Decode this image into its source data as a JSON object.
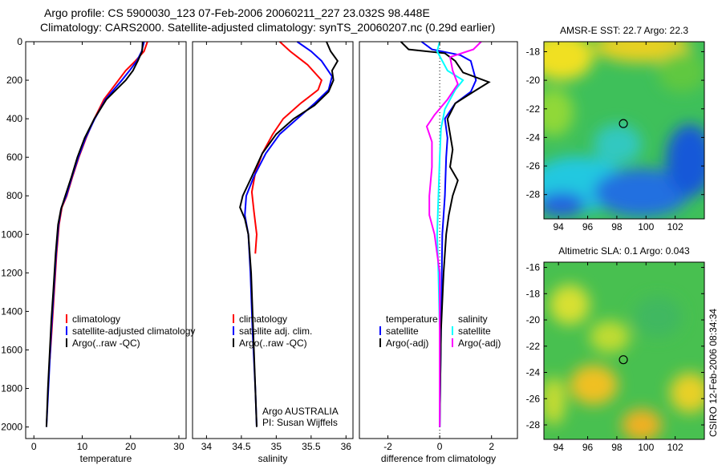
{
  "title_line1": "Argo profile: CS 5900030_123 07-Feb-2006 20060211_227 23.032S 98.448E",
  "title_line2": "Climatology: CARS2000. Satellite-adjusted climatology: synTS_20060207.nc (0.29d earlier)",
  "side_label": "CSIRO 12-Feb-2006 08:34:34",
  "chart_data": [
    {
      "type": "line",
      "id": "temperature",
      "xlabel": "temperature",
      "xlim": [
        -1.7,
        31.5
      ],
      "ylim": [
        0,
        2060
      ],
      "yreversed": true,
      "xticks": [
        0,
        10,
        20,
        30
      ],
      "yticks": [
        0,
        200,
        400,
        600,
        800,
        1000,
        1200,
        1400,
        1600,
        1800,
        2000
      ],
      "legend": {
        "placement": "center-right",
        "entries": [
          {
            "label": "climatology",
            "color": "#ff0000"
          },
          {
            "label": "satellite-adjusted climatology",
            "color": "#0000ff"
          },
          {
            "label": "Argo(..raw -QC)",
            "color": "#000000"
          }
        ]
      },
      "series": [
        {
          "name": "climatology",
          "color": "#ff0000",
          "points": [
            [
              23.5,
              0
            ],
            [
              22.8,
              50
            ],
            [
              21,
              100
            ],
            [
              19,
              150
            ],
            [
              17.5,
              200
            ],
            [
              16,
              250
            ],
            [
              14.5,
              300
            ],
            [
              12.5,
              400
            ],
            [
              10.8,
              500
            ],
            [
              9.3,
              600
            ],
            [
              8,
              700
            ],
            [
              6.8,
              800
            ],
            [
              5.8,
              860
            ],
            [
              5.2,
              950
            ],
            [
              4.7,
              1100
            ],
            [
              4.2,
              1300
            ],
            [
              3.7,
              1500
            ],
            [
              3.3,
              1650
            ]
          ]
        },
        {
          "name": "satellite-adjusted climatology",
          "color": "#0000ff",
          "points": [
            [
              22.8,
              0
            ],
            [
              22.3,
              50
            ],
            [
              21.3,
              100
            ],
            [
              19.8,
              150
            ],
            [
              18.2,
              200
            ],
            [
              16.5,
              250
            ],
            [
              14.8,
              300
            ],
            [
              12.6,
              400
            ],
            [
              10.7,
              500
            ],
            [
              9.2,
              600
            ],
            [
              7.9,
              700
            ],
            [
              6.7,
              800
            ],
            [
              5.7,
              860
            ],
            [
              5.1,
              950
            ],
            [
              4.6,
              1100
            ],
            [
              4.1,
              1300
            ],
            [
              3.6,
              1500
            ],
            [
              3.2,
              1700
            ],
            [
              2.9,
              1850
            ],
            [
              2.6,
              2000
            ]
          ]
        },
        {
          "name": "Argo(..raw -QC)",
          "color": "#000000",
          "points": [
            [
              22.5,
              0
            ],
            [
              22.4,
              50
            ],
            [
              21.5,
              100
            ],
            [
              20.5,
              150
            ],
            [
              19,
              200
            ],
            [
              17,
              250
            ],
            [
              15,
              300
            ],
            [
              12.5,
              400
            ],
            [
              10.5,
              500
            ],
            [
              9,
              600
            ],
            [
              7.8,
              700
            ],
            [
              6.5,
              800
            ],
            [
              5.6,
              870
            ],
            [
              5,
              950
            ],
            [
              4.5,
              1100
            ],
            [
              4,
              1300
            ],
            [
              3.6,
              1450
            ],
            [
              3.2,
              1650
            ],
            [
              2.9,
              1800
            ],
            [
              2.6,
              2000
            ]
          ]
        }
      ]
    },
    {
      "type": "line",
      "id": "salinity",
      "xlabel": "salinity",
      "xlim": [
        33.8,
        36.1
      ],
      "ylim": [
        0,
        2060
      ],
      "yreversed": true,
      "xticks": [
        34,
        34.5,
        35,
        35.5,
        36
      ],
      "yticks": [],
      "legend": {
        "placement": "center-right",
        "entries": [
          {
            "label": "climatology",
            "color": "#ff0000"
          },
          {
            "label": "satellite adj. clim.",
            "color": "#0000ff"
          },
          {
            "label": "Argo(..raw -QC)",
            "color": "#000000"
          }
        ]
      },
      "annotations": [
        "Argo AUSTRALIA",
        "PI: Susan Wijffels"
      ],
      "series": [
        {
          "name": "climatology",
          "color": "#ff0000",
          "points": [
            [
              35.05,
              0
            ],
            [
              35.2,
              50
            ],
            [
              35.45,
              120
            ],
            [
              35.65,
              200
            ],
            [
              35.6,
              250
            ],
            [
              35.35,
              320
            ],
            [
              35.1,
              400
            ],
            [
              34.95,
              480
            ],
            [
              34.8,
              580
            ],
            [
              34.7,
              680
            ],
            [
              34.65,
              780
            ],
            [
              34.68,
              880
            ],
            [
              34.72,
              1000
            ],
            [
              34.7,
              1100
            ]
          ]
        },
        {
          "name": "satellite adj. clim.",
          "color": "#0000ff",
          "points": [
            [
              35.3,
              0
            ],
            [
              35.5,
              50
            ],
            [
              35.65,
              100
            ],
            [
              35.8,
              180
            ],
            [
              35.75,
              250
            ],
            [
              35.55,
              320
            ],
            [
              35.3,
              400
            ],
            [
              35.05,
              480
            ],
            [
              34.85,
              580
            ],
            [
              34.68,
              700
            ],
            [
              34.57,
              800
            ],
            [
              34.55,
              900
            ],
            [
              34.6,
              1000
            ],
            [
              34.63,
              1200
            ],
            [
              34.66,
              1500
            ],
            [
              34.7,
              1800
            ],
            [
              34.72,
              2000
            ]
          ]
        },
        {
          "name": "Argo(..raw -QC)",
          "color": "#000000",
          "points": [
            [
              35.72,
              0
            ],
            [
              35.78,
              50
            ],
            [
              35.88,
              100
            ],
            [
              35.8,
              150
            ],
            [
              35.82,
              200
            ],
            [
              35.75,
              260
            ],
            [
              35.55,
              330
            ],
            [
              35.25,
              400
            ],
            [
              35,
              480
            ],
            [
              34.8,
              580
            ],
            [
              34.65,
              700
            ],
            [
              34.52,
              800
            ],
            [
              34.48,
              860
            ],
            [
              34.55,
              920
            ],
            [
              34.6,
              1000
            ],
            [
              34.64,
              1200
            ],
            [
              34.67,
              1500
            ],
            [
              34.7,
              1800
            ],
            [
              34.72,
              2000
            ]
          ]
        }
      ]
    },
    {
      "type": "line",
      "id": "difference",
      "xlabel": "difference from climatology",
      "xlim": [
        -3.1,
        3
      ],
      "ylim": [
        0,
        2060
      ],
      "yreversed": true,
      "xticks": [
        -2,
        0,
        2
      ],
      "yticks": [],
      "legend": {
        "placement": "center",
        "headers": [
          "temperature",
          "salinity"
        ],
        "entries": [
          {
            "label": "satellite",
            "color": "#0000ff"
          },
          {
            "label": "Argo(-adj)",
            "color": "#000000"
          },
          {
            "label": "satellite",
            "color": "#00ffff"
          },
          {
            "label": "Argo(-adj)",
            "color": "#ff00ff"
          }
        ]
      },
      "series": [
        {
          "name": "temperature satellite",
          "color": "#0000ff",
          "points": [
            [
              -0.7,
              0
            ],
            [
              -0.3,
              40
            ],
            [
              0.8,
              70
            ],
            [
              1.2,
              100
            ],
            [
              1.4,
              200
            ],
            [
              1.2,
              260
            ],
            [
              0.6,
              320
            ],
            [
              0.2,
              400
            ],
            [
              0.3,
              500
            ],
            [
              0.25,
              600
            ],
            [
              0.2,
              800
            ],
            [
              0.1,
              1000
            ],
            [
              0.05,
              1500
            ],
            [
              0,
              2000
            ]
          ]
        },
        {
          "name": "temperature Argo(-adj)",
          "color": "#000000",
          "points": [
            [
              -1.5,
              0
            ],
            [
              -1.2,
              40
            ],
            [
              0.2,
              60
            ],
            [
              0.6,
              100
            ],
            [
              0.9,
              160
            ],
            [
              1.9,
              210
            ],
            [
              1.3,
              260
            ],
            [
              0.6,
              320
            ],
            [
              0.3,
              400
            ],
            [
              0.4,
              480
            ],
            [
              0.5,
              560
            ],
            [
              0.4,
              650
            ],
            [
              0.7,
              720
            ],
            [
              0.5,
              800
            ],
            [
              0.35,
              900
            ],
            [
              0.25,
              1000
            ],
            [
              0.15,
              1200
            ],
            [
              0.05,
              1500
            ],
            [
              0,
              2000
            ]
          ]
        },
        {
          "name": "salinity satellite",
          "color": "#00ffff",
          "points": [
            [
              0,
              0
            ],
            [
              -0.1,
              50
            ],
            [
              0.1,
              100
            ],
            [
              0.3,
              150
            ],
            [
              0.9,
              200
            ],
            [
              0.6,
              250
            ],
            [
              0.2,
              350
            ],
            [
              0.05,
              450
            ],
            [
              0,
              600
            ],
            [
              -0.05,
              800
            ],
            [
              -0.1,
              1000
            ],
            [
              -0.05,
              1200
            ],
            [
              0,
              1500
            ],
            [
              0,
              2000
            ]
          ]
        },
        {
          "name": "salinity Argo(-adj)",
          "color": "#ff00ff",
          "points": [
            [
              1.6,
              0
            ],
            [
              1.3,
              40
            ],
            [
              0.4,
              80
            ],
            [
              0.5,
              150
            ],
            [
              0.7,
              220
            ],
            [
              0.3,
              300
            ],
            [
              -0.2,
              380
            ],
            [
              -0.5,
              440
            ],
            [
              -0.3,
              520
            ],
            [
              -0.3,
              650
            ],
            [
              -0.4,
              800
            ],
            [
              -0.4,
              900
            ],
            [
              -0.2,
              1000
            ],
            [
              0,
              1200
            ],
            [
              0,
              1500
            ],
            [
              0,
              2000
            ]
          ]
        }
      ]
    },
    {
      "type": "heatmap",
      "id": "sst",
      "title": "AMSR-E SST: 22.7 Argo: 22.3",
      "xlim": [
        93,
        104
      ],
      "ylim": [
        -29.7,
        -17.3
      ],
      "xticks": [
        94,
        96,
        98,
        100,
        102
      ],
      "yticks": [
        -18,
        -20,
        -22,
        -24,
        -26,
        -28
      ],
      "marker": [
        98.448,
        -23.032
      ]
    },
    {
      "type": "heatmap",
      "id": "sla",
      "title": "Altimetric SLA: 0.1 Argo: 0.043",
      "xlim": [
        93,
        104
      ],
      "ylim": [
        -29.1,
        -15.6
      ],
      "xticks": [
        94,
        96,
        98,
        100,
        102
      ],
      "yticks": [
        -16,
        -18,
        -20,
        -22,
        -24,
        -26,
        -28
      ],
      "marker": [
        98.448,
        -23.032
      ]
    }
  ]
}
